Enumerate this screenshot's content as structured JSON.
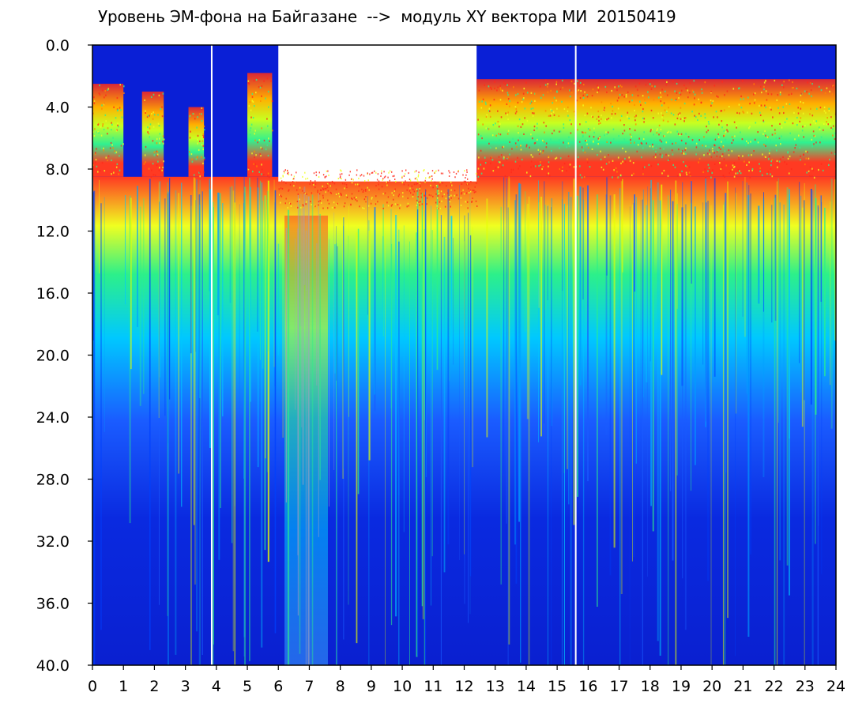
{
  "chart_data": {
    "type": "heatmap",
    "title": "Уровень ЭМ-фона на Байгазане  -->  модуль XY вектора МИ  20150419",
    "xlabel": "",
    "ylabel": "",
    "xlim": [
      0,
      24
    ],
    "ylim": [
      0,
      40
    ],
    "y_inverted": true,
    "grid": false,
    "x_ticks": [
      "0",
      "1",
      "2",
      "3",
      "4",
      "5",
      "6",
      "7",
      "8",
      "9",
      "10",
      "11",
      "12",
      "13",
      "14",
      "15",
      "16",
      "17",
      "18",
      "19",
      "20",
      "21",
      "22",
      "23",
      "24"
    ],
    "y_ticks": [
      "0.0",
      "4.0",
      "8.0",
      "12.0",
      "16.0",
      "20.0",
      "24.0",
      "28.0",
      "32.0",
      "36.0",
      "40.0"
    ],
    "colors": {
      "background": "#0a1fd6",
      "low": "#0026e0",
      "mid_low": "#00c8ff",
      "mid": "#2cf08a",
      "mid_high": "#e6ff00",
      "high": "#ff2a1a"
    },
    "bands": [
      {
        "x": [
          0.0,
          1.0
        ],
        "top_level": 2.5,
        "edge_level": 8.5
      },
      {
        "x": [
          1.6,
          2.3
        ],
        "top_level": 3.0,
        "edge_level": 8.5
      },
      {
        "x": [
          3.1,
          3.6
        ],
        "top_level": 4.0,
        "edge_level": 8.5
      },
      {
        "x": [
          5.0,
          5.8
        ],
        "top_level": 1.8,
        "edge_level": 8.5
      },
      {
        "x": [
          12.4,
          24.0
        ],
        "top_level": 2.2,
        "edge_level": 8.5
      }
    ],
    "deep_column_region": {
      "x": [
        6.2,
        7.6
      ],
      "edge_level": 11.0
    },
    "white_gap_lines_x": [
      3.85,
      15.6
    ]
  }
}
